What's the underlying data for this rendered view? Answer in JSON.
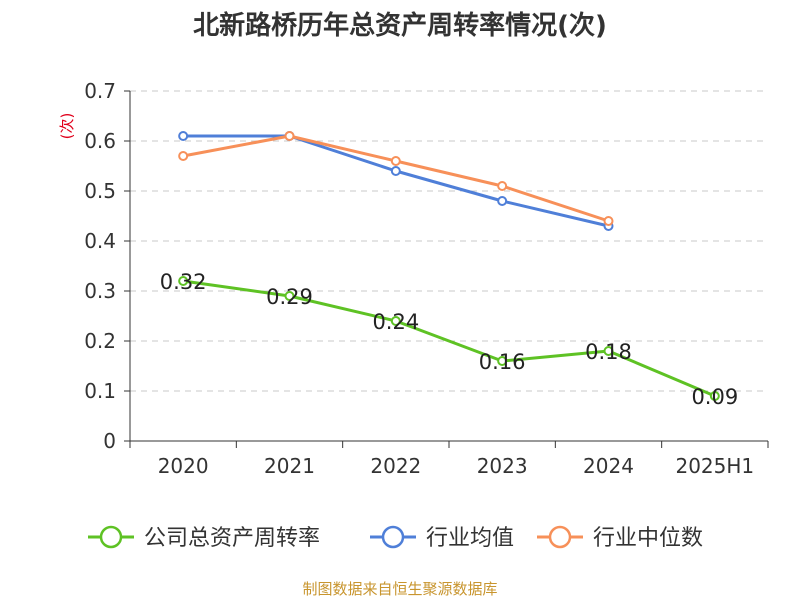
{
  "chart_data": {
    "type": "line",
    "title": "北新路桥历年总资产周转率情况(次)",
    "ylabel": "(次)",
    "xlabel": "",
    "categories": [
      "2020",
      "2021",
      "2022",
      "2023",
      "2024",
      "2025H1"
    ],
    "ylim": [
      0,
      0.7
    ],
    "yticks": [
      "0",
      "0.1",
      "0.2",
      "0.3",
      "0.4",
      "0.5",
      "0.6",
      "0.7"
    ],
    "grid": true,
    "legend_position": "bottom",
    "series": [
      {
        "name": "公司总资产周转率",
        "color": "#5ec224",
        "values": [
          0.32,
          0.29,
          0.24,
          0.16,
          0.18,
          0.09
        ],
        "labels": [
          "0.32",
          "0.29",
          "0.24",
          "0.16",
          "0.18",
          "0.09"
        ]
      },
      {
        "name": "行业均值",
        "color": "#4f7fd8",
        "values": [
          0.61,
          0.61,
          0.54,
          0.48,
          0.43,
          null
        ]
      },
      {
        "name": "行业中位数",
        "color": "#f79059",
        "values": [
          0.57,
          0.61,
          0.56,
          0.51,
          0.44,
          null
        ]
      }
    ],
    "source": "制图数据来自恒生聚源数据库"
  }
}
